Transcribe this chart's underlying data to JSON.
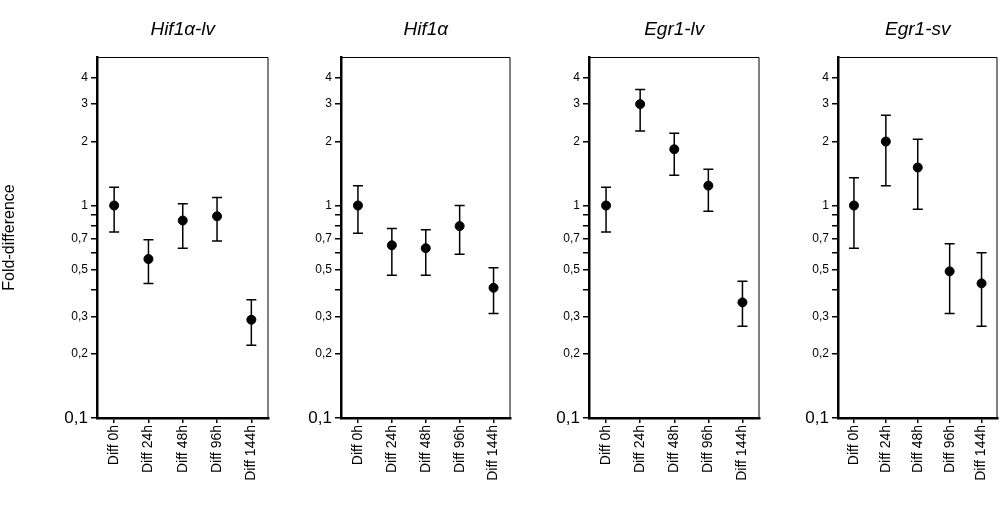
{
  "chart_data": [
    {
      "type": "scatter",
      "title": "Hif1α-lv",
      "ylabel": "Fold-difference",
      "categories": [
        "Diff 0h",
        "Diff 24h",
        "Diff 48h",
        "Diff 96h",
        "Diff 144h"
      ],
      "log": "y",
      "marker": "circle",
      "ylim": [
        0.1,
        5
      ],
      "yticks": [
        {
          "value": 0.1,
          "label": "0,1"
        },
        {
          "value": 0.2,
          "label": "0,2"
        },
        {
          "value": 0.3,
          "label": "0,3"
        },
        {
          "value": 0.4,
          "label": null
        },
        {
          "value": 0.5,
          "label": "0,5"
        },
        {
          "value": 0.6,
          "label": null
        },
        {
          "value": 0.7,
          "label": "0,7"
        },
        {
          "value": 0.8,
          "label": null
        },
        {
          "value": 0.9,
          "label": null
        },
        1,
        2,
        3,
        4
      ],
      "grid": false,
      "legend": false,
      "series": [
        {
          "color": "#000000",
          "values": [
            1,
            0.56,
            0.85,
            0.89,
            0.29
          ],
          "errors": [
            [
              0.75,
              1.22
            ],
            [
              0.43,
              0.69
            ],
            [
              0.63,
              1.02
            ],
            [
              0.68,
              1.09
            ],
            [
              0.22,
              0.36
            ]
          ]
        }
      ]
    },
    {
      "type": "scatter",
      "title": "Hif1α",
      "categories": [
        "Diff 0h",
        "Diff 24h",
        "Diff 48h",
        "Diff 96h",
        "Diff 144h"
      ],
      "log": "y",
      "marker": "circle",
      "ylim": [
        0.1,
        5
      ],
      "yticks": [
        {
          "value": 0.1,
          "label": "0,1"
        },
        {
          "value": 0.2,
          "label": "0,2"
        },
        {
          "value": 0.3,
          "label": "0,3"
        },
        {
          "value": 0.4,
          "label": null
        },
        {
          "value": 0.5,
          "label": "0,5"
        },
        {
          "value": 0.6,
          "label": null
        },
        {
          "value": 0.7,
          "label": "0,7"
        },
        {
          "value": 0.8,
          "label": null
        },
        {
          "value": 0.9,
          "label": null
        },
        1,
        2,
        3,
        4
      ],
      "grid": false,
      "legend": false,
      "series": [
        {
          "color": "#000000",
          "values": [
            1,
            0.65,
            0.63,
            0.8,
            0.41
          ],
          "errors": [
            [
              0.74,
              1.24
            ],
            [
              0.47,
              0.78
            ],
            [
              0.47,
              0.77
            ],
            [
              0.59,
              1.0
            ],
            [
              0.31,
              0.51
            ]
          ]
        }
      ]
    },
    {
      "type": "scatter",
      "title": "Egr1-lv",
      "categories": [
        "Diff 0h",
        "Diff 24h",
        "Diff 48h",
        "Diff 96h",
        "Diff 144h"
      ],
      "log": "y",
      "marker": "circle",
      "ylim": [
        0.1,
        5
      ],
      "yticks": [
        {
          "value": 0.1,
          "label": "0,1"
        },
        {
          "value": 0.2,
          "label": "0,2"
        },
        {
          "value": 0.3,
          "label": "0,3"
        },
        {
          "value": 0.4,
          "label": null
        },
        {
          "value": 0.5,
          "label": "0,5"
        },
        {
          "value": 0.6,
          "label": null
        },
        {
          "value": 0.7,
          "label": "0,7"
        },
        {
          "value": 0.8,
          "label": null
        },
        {
          "value": 0.9,
          "label": null
        },
        1,
        2,
        3,
        4
      ],
      "grid": false,
      "legend": false,
      "series": [
        {
          "color": "#000000",
          "values": [
            1,
            3.0,
            1.84,
            1.24,
            0.35
          ],
          "errors": [
            [
              0.75,
              1.22
            ],
            [
              2.24,
              3.52
            ],
            [
              1.39,
              2.19
            ],
            [
              0.94,
              1.48
            ],
            [
              0.27,
              0.44
            ]
          ]
        }
      ]
    },
    {
      "type": "scatter",
      "title": "Egr1-sv",
      "categories": [
        "Diff 0h",
        "Diff 24h",
        "Diff 48h",
        "Diff 96h",
        "Diff 144h"
      ],
      "log": "y",
      "marker": "circle",
      "ylim": [
        0.1,
        5
      ],
      "yticks": [
        {
          "value": 0.1,
          "label": "0,1"
        },
        {
          "value": 0.2,
          "label": "0,2"
        },
        {
          "value": 0.3,
          "label": "0,3"
        },
        {
          "value": 0.4,
          "label": null
        },
        {
          "value": 0.5,
          "label": "0,5"
        },
        {
          "value": 0.6,
          "label": null
        },
        {
          "value": 0.7,
          "label": "0,7"
        },
        {
          "value": 0.8,
          "label": null
        },
        {
          "value": 0.9,
          "label": null
        },
        1,
        2,
        3,
        4
      ],
      "grid": false,
      "legend": false,
      "series": [
        {
          "color": "#000000",
          "values": [
            1,
            2.0,
            1.51,
            0.49,
            0.43
          ],
          "errors": [
            [
              0.63,
              1.35
            ],
            [
              1.24,
              2.66
            ],
            [
              0.96,
              2.05
            ],
            [
              0.31,
              0.66
            ],
            [
              0.27,
              0.6
            ]
          ]
        }
      ]
    }
  ]
}
